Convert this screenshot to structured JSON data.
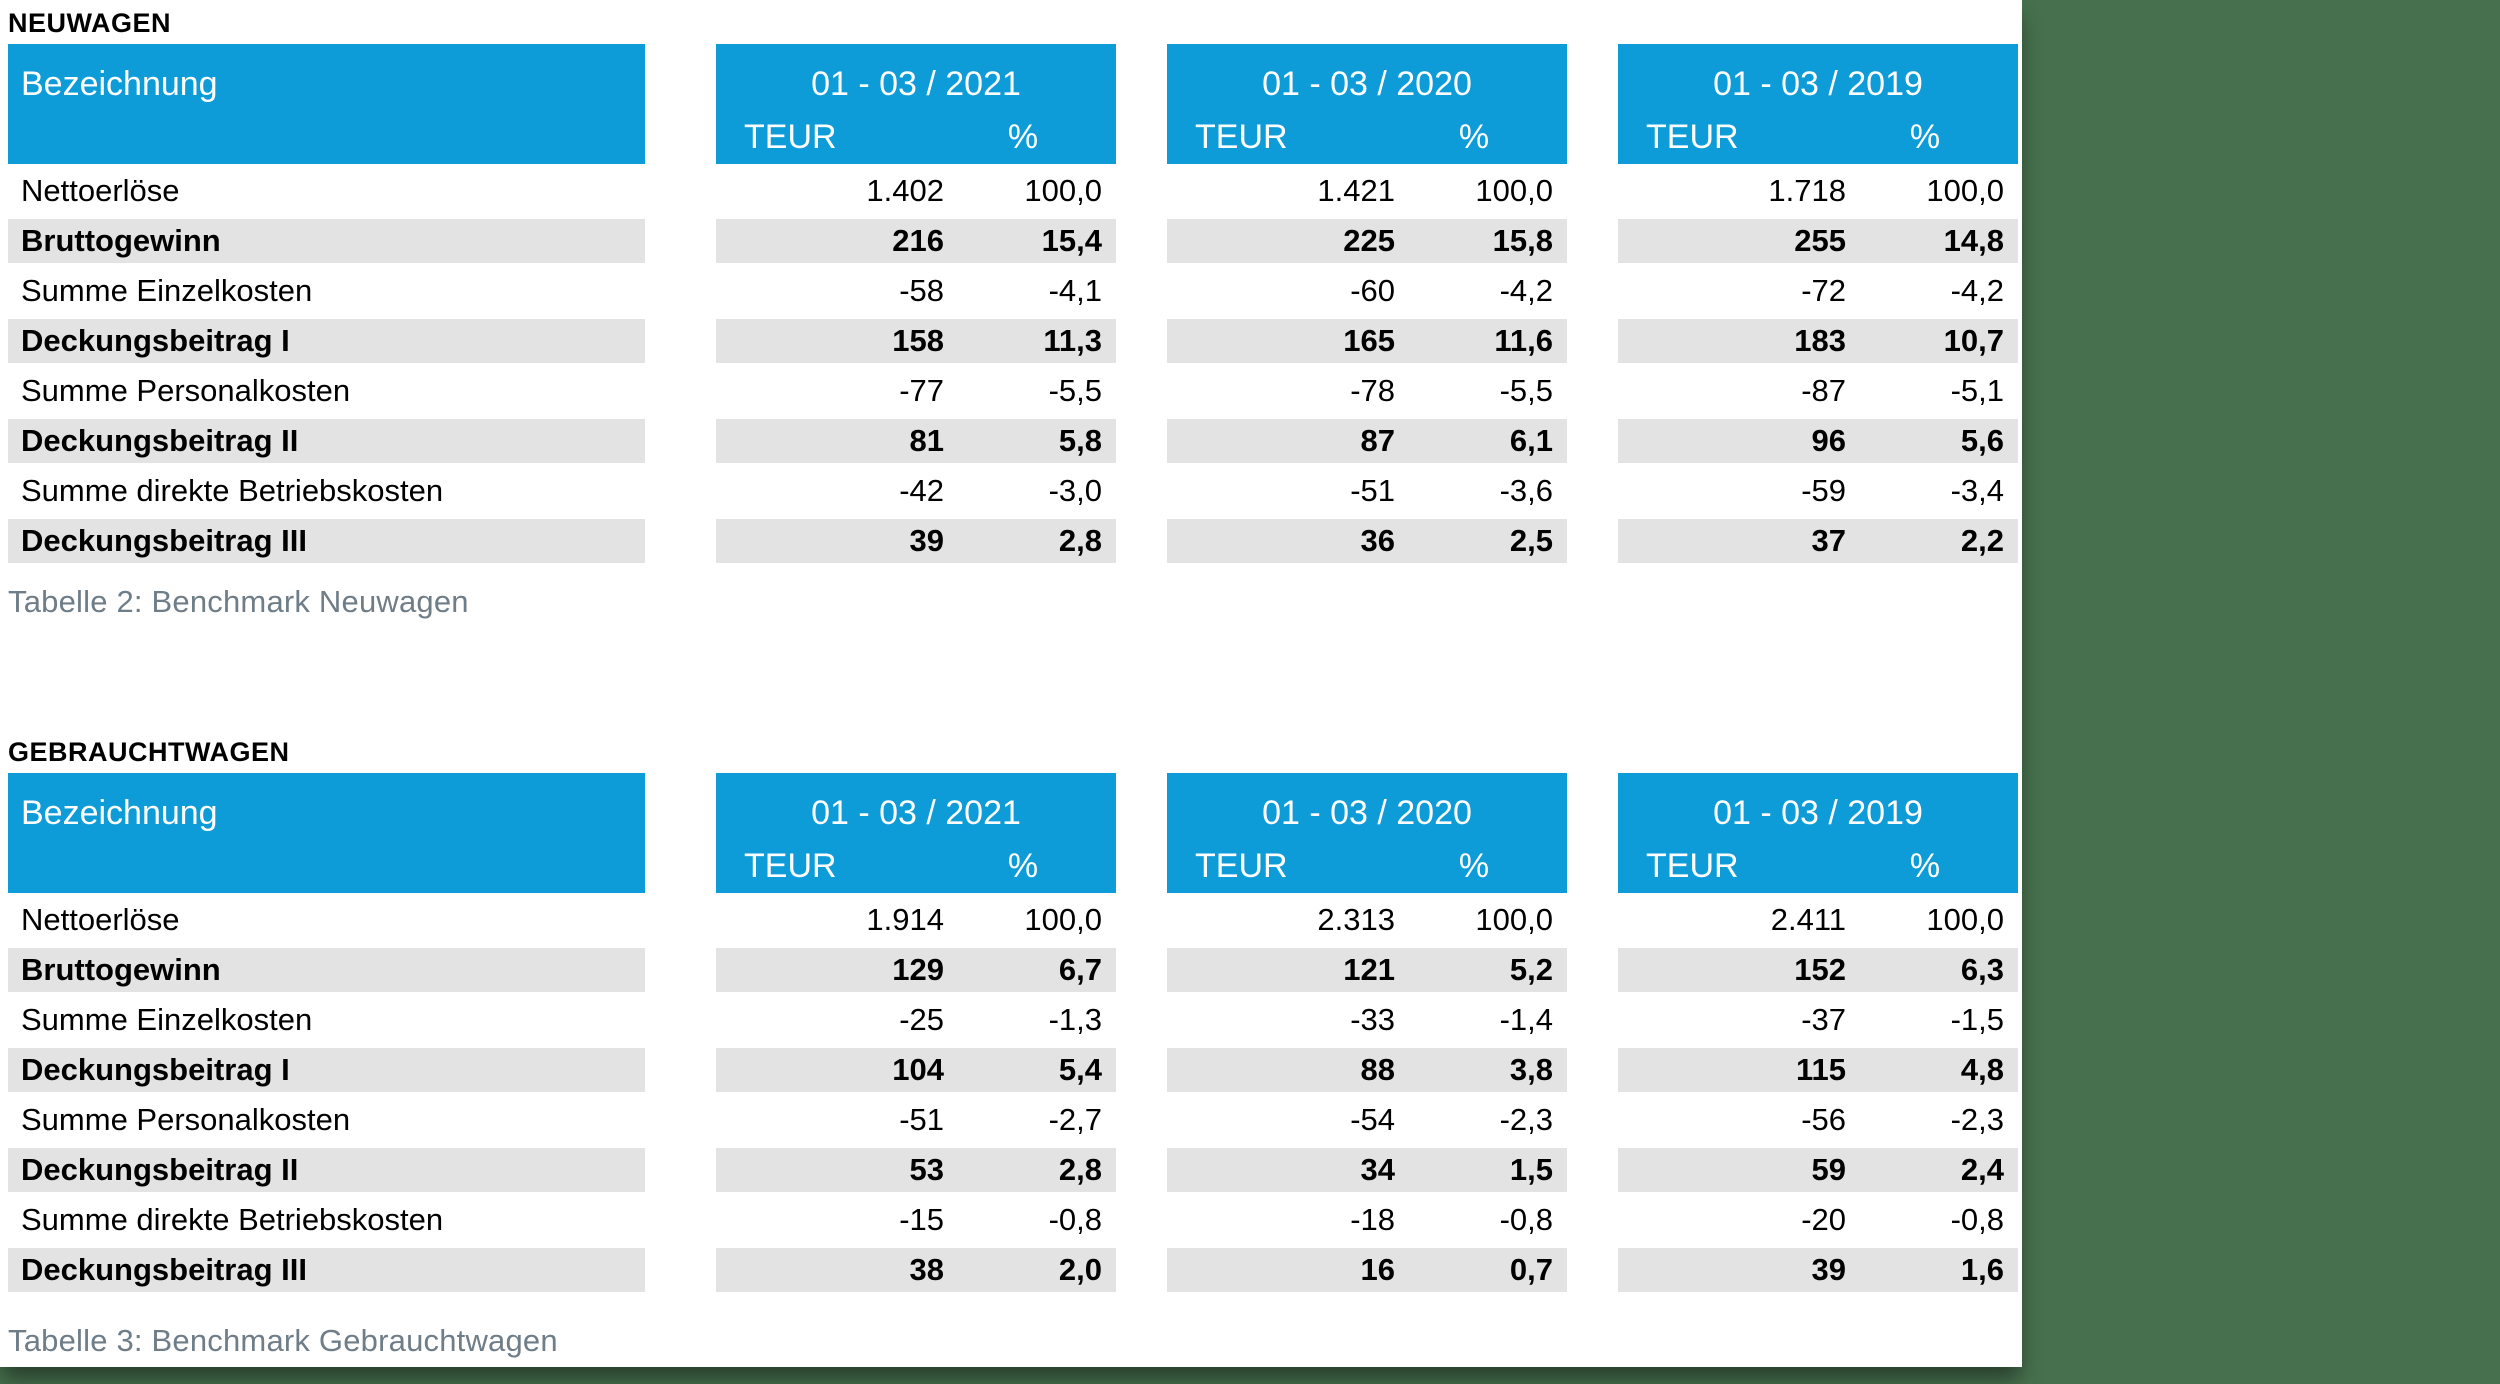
{
  "colors": {
    "accent_blue": "#0e9cd9",
    "stripe_gray": "#e3e3e3",
    "background_green": "#47714e",
    "caption_gray": "#6f7d88"
  },
  "neuwagen": {
    "section_title": "NEUWAGEN",
    "caption": "Tabelle 2: Benchmark Neuwagen",
    "header": {
      "label": "Bezeichnung",
      "periods": [
        "01 - 03 / 2021",
        "01 - 03 / 2020",
        "01 - 03 / 2019"
      ],
      "unit": "TEUR",
      "percent": "%"
    },
    "rows": [
      {
        "label": "Nettoerlöse",
        "v": [
          "1.402",
          "100,0",
          "1.421",
          "100,0",
          "1.718",
          "100,0"
        ]
      },
      {
        "label": "Bruttogewinn",
        "v": [
          "216",
          "15,4",
          "225",
          "15,8",
          "255",
          "14,8"
        ]
      },
      {
        "label": "Summe Einzelkosten",
        "v": [
          "-58",
          "-4,1",
          "-60",
          "-4,2",
          "-72",
          "-4,2"
        ]
      },
      {
        "label": "Deckungsbeitrag I",
        "v": [
          "158",
          "11,3",
          "165",
          "11,6",
          "183",
          "10,7"
        ]
      },
      {
        "label": "Summe Personalkosten",
        "v": [
          "-77",
          "-5,5",
          "-78",
          "-5,5",
          "-87",
          "-5,1"
        ]
      },
      {
        "label": "Deckungsbeitrag II",
        "v": [
          "81",
          "5,8",
          "87",
          "6,1",
          "96",
          "5,6"
        ]
      },
      {
        "label": "Summe direkte Betriebskosten",
        "v": [
          "-42",
          "-3,0",
          "-51",
          "-3,6",
          "-59",
          "-3,4"
        ]
      },
      {
        "label": "Deckungsbeitrag III",
        "v": [
          "39",
          "2,8",
          "36",
          "2,5",
          "37",
          "2,2"
        ]
      }
    ]
  },
  "gebrauchtwagen": {
    "section_title": "GEBRAUCHTWAGEN",
    "caption": "Tabelle 3: Benchmark Gebrauchtwagen",
    "header": {
      "label": "Bezeichnung",
      "periods": [
        "01 - 03 / 2021",
        "01 - 03 / 2020",
        "01 - 03 / 2019"
      ],
      "unit": "TEUR",
      "percent": "%"
    },
    "rows": [
      {
        "label": "Nettoerlöse",
        "v": [
          "1.914",
          "100,0",
          "2.313",
          "100,0",
          "2.411",
          "100,0"
        ]
      },
      {
        "label": "Bruttogewinn",
        "v": [
          "129",
          "6,7",
          "121",
          "5,2",
          "152",
          "6,3"
        ]
      },
      {
        "label": "Summe Einzelkosten",
        "v": [
          "-25",
          "-1,3",
          "-33",
          "-1,4",
          "-37",
          "-1,5"
        ]
      },
      {
        "label": "Deckungsbeitrag I",
        "v": [
          "104",
          "5,4",
          "88",
          "3,8",
          "115",
          "4,8"
        ]
      },
      {
        "label": "Summe Personalkosten",
        "v": [
          "-51",
          "-2,7",
          "-54",
          "-2,3",
          "-56",
          "-2,3"
        ]
      },
      {
        "label": "Deckungsbeitrag II",
        "v": [
          "53",
          "2,8",
          "34",
          "1,5",
          "59",
          "2,4"
        ]
      },
      {
        "label": "Summe direkte Betriebskosten",
        "v": [
          "-15",
          "-0,8",
          "-18",
          "-0,8",
          "-20",
          "-0,8"
        ]
      },
      {
        "label": "Deckungsbeitrag III",
        "v": [
          "38",
          "2,0",
          "16",
          "0,7",
          "39",
          "1,6"
        ]
      }
    ]
  }
}
